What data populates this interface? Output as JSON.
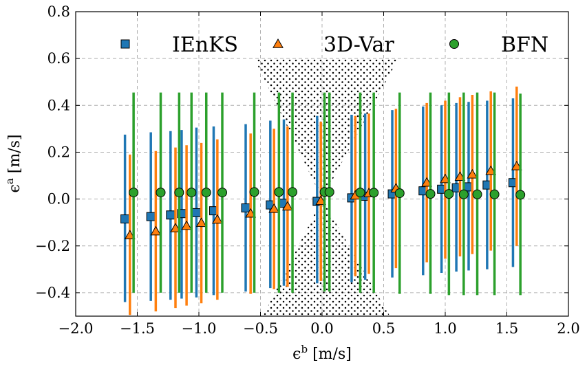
{
  "chart_data": {
    "type": "scatter",
    "xlabel": "ε^b [m/s]",
    "ylabel": "ε^a [m/s]",
    "xlim": [
      -2.0,
      2.0
    ],
    "ylim": [
      -0.5,
      0.8
    ],
    "xticks": [
      -2.0,
      -1.5,
      -1.0,
      -0.5,
      0.0,
      0.5,
      1.0,
      1.5,
      2.0
    ],
    "xtick_labels": [
      "−2.0",
      "−1.5",
      "−1.0",
      "−0.5",
      "0.0",
      "0.5",
      "1.0",
      "1.5",
      "2.0"
    ],
    "yticks": [
      -0.4,
      -0.2,
      0.0,
      0.2,
      0.4,
      0.6,
      0.8
    ],
    "ytick_labels": [
      "−0.4",
      "−0.2",
      "0.0",
      "0.2",
      "0.4",
      "0.6",
      "0.8"
    ],
    "grid": true,
    "legend_position": "top",
    "shaded_region": {
      "description": "dotted hourglass region",
      "polygon": [
        [
          -0.55,
          0.6
        ],
        [
          0.62,
          0.6
        ],
        [
          0.0,
          0.0
        ],
        [
          0.55,
          -0.5
        ],
        [
          -0.48,
          -0.5
        ],
        [
          0.0,
          0.0
        ]
      ]
    },
    "series": [
      {
        "name": "IEnKS",
        "marker": "square",
        "color": "#1f77b4",
        "points": [
          {
            "x": -1.6,
            "y": -0.085,
            "lo": -0.44,
            "hi": 0.275
          },
          {
            "x": -1.39,
            "y": -0.075,
            "lo": -0.435,
            "hi": 0.285
          },
          {
            "x": -1.23,
            "y": -0.068,
            "lo": -0.43,
            "hi": 0.29
          },
          {
            "x": -1.14,
            "y": -0.062,
            "lo": -0.425,
            "hi": 0.295
          },
          {
            "x": -1.02,
            "y": -0.058,
            "lo": -0.42,
            "hi": 0.305
          },
          {
            "x": -0.88,
            "y": -0.05,
            "lo": -0.41,
            "hi": 0.31
          },
          {
            "x": -0.62,
            "y": -0.038,
            "lo": -0.395,
            "hi": 0.32
          },
          {
            "x": -0.42,
            "y": -0.025,
            "lo": -0.38,
            "hi": 0.335
          },
          {
            "x": -0.31,
            "y": -0.018,
            "lo": -0.37,
            "hi": 0.34
          },
          {
            "x": -0.04,
            "y": -0.01,
            "lo": -0.36,
            "hi": 0.355
          },
          {
            "x": 0.24,
            "y": 0.005,
            "lo": -0.355,
            "hi": 0.36
          },
          {
            "x": 0.35,
            "y": 0.012,
            "lo": -0.345,
            "hi": 0.365
          },
          {
            "x": 0.57,
            "y": 0.022,
            "lo": -0.335,
            "hi": 0.38
          },
          {
            "x": 0.82,
            "y": 0.035,
            "lo": -0.325,
            "hi": 0.395
          },
          {
            "x": 0.97,
            "y": 0.042,
            "lo": -0.315,
            "hi": 0.4
          },
          {
            "x": 1.09,
            "y": 0.048,
            "lo": -0.31,
            "hi": 0.41
          },
          {
            "x": 1.19,
            "y": 0.052,
            "lo": -0.305,
            "hi": 0.415
          },
          {
            "x": 1.34,
            "y": 0.06,
            "lo": -0.3,
            "hi": 0.42
          },
          {
            "x": 1.55,
            "y": 0.07,
            "lo": -0.29,
            "hi": 0.43
          }
        ]
      },
      {
        "name": "3D-Var",
        "marker": "triangle",
        "color": "#ff7f0e",
        "points": [
          {
            "x": -1.56,
            "y": -0.155,
            "lo": -0.495,
            "hi": 0.19
          },
          {
            "x": -1.35,
            "y": -0.138,
            "lo": -0.48,
            "hi": 0.205
          },
          {
            "x": -1.19,
            "y": -0.125,
            "lo": -0.465,
            "hi": 0.22
          },
          {
            "x": -1.1,
            "y": -0.115,
            "lo": -0.455,
            "hi": 0.23
          },
          {
            "x": -0.98,
            "y": -0.102,
            "lo": -0.445,
            "hi": 0.24
          },
          {
            "x": -0.85,
            "y": -0.088,
            "lo": -0.43,
            "hi": 0.255
          },
          {
            "x": -0.58,
            "y": -0.062,
            "lo": -0.405,
            "hi": 0.28
          },
          {
            "x": -0.39,
            "y": -0.042,
            "lo": -0.385,
            "hi": 0.3
          },
          {
            "x": -0.28,
            "y": -0.032,
            "lo": -0.375,
            "hi": 0.31
          },
          {
            "x": -0.01,
            "y": -0.008,
            "lo": -0.35,
            "hi": 0.33
          },
          {
            "x": 0.27,
            "y": 0.015,
            "lo": -0.33,
            "hi": 0.355
          },
          {
            "x": 0.38,
            "y": 0.025,
            "lo": -0.32,
            "hi": 0.365
          },
          {
            "x": 0.6,
            "y": 0.045,
            "lo": -0.295,
            "hi": 0.385
          },
          {
            "x": 0.85,
            "y": 0.07,
            "lo": -0.27,
            "hi": 0.41
          },
          {
            "x": 1.0,
            "y": 0.085,
            "lo": -0.255,
            "hi": 0.42
          },
          {
            "x": 1.12,
            "y": 0.095,
            "lo": -0.245,
            "hi": 0.435
          },
          {
            "x": 1.22,
            "y": 0.105,
            "lo": -0.235,
            "hi": 0.445
          },
          {
            "x": 1.37,
            "y": 0.12,
            "lo": -0.22,
            "hi": 0.46
          },
          {
            "x": 1.58,
            "y": 0.14,
            "lo": -0.2,
            "hi": 0.48
          }
        ]
      },
      {
        "name": "BFN",
        "marker": "circle",
        "color": "#2ca02c",
        "points": [
          {
            "x": -1.53,
            "y": 0.028,
            "lo": -0.4,
            "hi": 0.455
          },
          {
            "x": -1.31,
            "y": 0.028,
            "lo": -0.4,
            "hi": 0.455
          },
          {
            "x": -1.16,
            "y": 0.028,
            "lo": -0.4,
            "hi": 0.455
          },
          {
            "x": -1.06,
            "y": 0.028,
            "lo": -0.4,
            "hi": 0.455
          },
          {
            "x": -0.94,
            "y": 0.028,
            "lo": -0.4,
            "hi": 0.455
          },
          {
            "x": -0.81,
            "y": 0.028,
            "lo": -0.4,
            "hi": 0.455
          },
          {
            "x": -0.55,
            "y": 0.03,
            "lo": -0.4,
            "hi": 0.455
          },
          {
            "x": -0.35,
            "y": 0.03,
            "lo": -0.4,
            "hi": 0.455
          },
          {
            "x": -0.24,
            "y": 0.03,
            "lo": -0.4,
            "hi": 0.455
          },
          {
            "x": 0.02,
            "y": 0.03,
            "lo": -0.395,
            "hi": 0.455
          },
          {
            "x": 0.06,
            "y": 0.03,
            "lo": -0.395,
            "hi": 0.455
          },
          {
            "x": 0.31,
            "y": 0.028,
            "lo": -0.4,
            "hi": 0.455
          },
          {
            "x": 0.42,
            "y": 0.027,
            "lo": -0.4,
            "hi": 0.455
          },
          {
            "x": 0.63,
            "y": 0.025,
            "lo": -0.405,
            "hi": 0.455
          },
          {
            "x": 0.88,
            "y": 0.022,
            "lo": -0.405,
            "hi": 0.455
          },
          {
            "x": 1.03,
            "y": 0.022,
            "lo": -0.41,
            "hi": 0.455
          },
          {
            "x": 1.15,
            "y": 0.02,
            "lo": -0.41,
            "hi": 0.455
          },
          {
            "x": 1.26,
            "y": 0.02,
            "lo": -0.41,
            "hi": 0.455
          },
          {
            "x": 1.4,
            "y": 0.02,
            "lo": -0.41,
            "hi": 0.455
          },
          {
            "x": 1.61,
            "y": 0.018,
            "lo": -0.41,
            "hi": 0.45
          }
        ]
      }
    ]
  }
}
